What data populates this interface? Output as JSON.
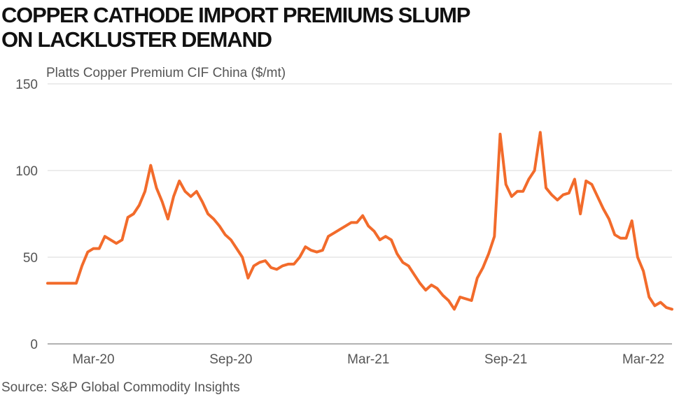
{
  "chart_data": {
    "type": "line",
    "title_lines": [
      "COPPER CATHODE IMPORT PREMIUMS SLUMP",
      "ON LACKLUSTER DEMAND"
    ],
    "y_label": "Platts Copper Premium CIF China ($/mt)",
    "source": "Source: S&P Global Commodity Insights",
    "categories": [
      null,
      null,
      null,
      null,
      null,
      null,
      null,
      null,
      "Mar-20",
      null,
      null,
      null,
      null,
      null,
      null,
      null,
      null,
      null,
      null,
      null,
      null,
      null,
      null,
      null,
      null,
      null,
      null,
      null,
      null,
      null,
      null,
      null,
      "Sep-20",
      null,
      null,
      null,
      null,
      null,
      null,
      null,
      null,
      null,
      null,
      null,
      null,
      null,
      null,
      null,
      null,
      null,
      null,
      null,
      null,
      null,
      null,
      null,
      "Mar-21",
      null,
      null,
      null,
      null,
      null,
      null,
      null,
      null,
      null,
      null,
      null,
      null,
      null,
      null,
      null,
      null,
      null,
      null,
      null,
      null,
      null,
      null,
      null,
      "Sep-21",
      null,
      null,
      null,
      null,
      null,
      null,
      null,
      null,
      null,
      null,
      null,
      null,
      null,
      null,
      null,
      null,
      null,
      null,
      null,
      null,
      null,
      null,
      null,
      "Mar-22",
      null,
      null,
      null,
      null,
      null
    ],
    "series": [
      {
        "name": "Platts Copper Premium CIF China",
        "color": "#f26b2b",
        "values": [
          35,
          35,
          35,
          35,
          35,
          35,
          45,
          53,
          55,
          55,
          62,
          60,
          58,
          60,
          73,
          75,
          80,
          88,
          103,
          90,
          82,
          72,
          85,
          94,
          88,
          85,
          88,
          82,
          75,
          72,
          68,
          63,
          60,
          55,
          50,
          38,
          45,
          47,
          48,
          44,
          43,
          45,
          46,
          46,
          50,
          56,
          54,
          53,
          54,
          62,
          64,
          66,
          68,
          70,
          70,
          74,
          68,
          65,
          60,
          62,
          60,
          52,
          47,
          45,
          40,
          35,
          31,
          34,
          32,
          28,
          25,
          20,
          27,
          26,
          25,
          38,
          44,
          52,
          62,
          121,
          92,
          85,
          88,
          88,
          95,
          100,
          122,
          90,
          86,
          83,
          86,
          87,
          95,
          75,
          94,
          92,
          85,
          78,
          72,
          63,
          61,
          61,
          71,
          50,
          42,
          27,
          22,
          24,
          21,
          20
        ]
      }
    ],
    "ylim": [
      0,
      150
    ],
    "yticks": [
      0,
      50,
      100,
      150
    ],
    "grid": true
  }
}
